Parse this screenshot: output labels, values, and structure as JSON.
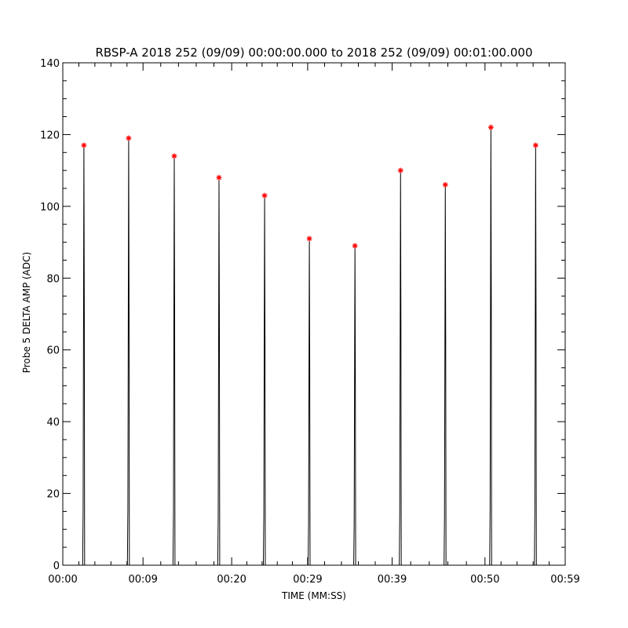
{
  "chart_data": {
    "type": "line",
    "title": "RBSP-A 2018 252 (09/09) 00:00:00.000 to 2018 252 (09/09) 00:01:00.000",
    "xlabel": "TIME (MM:SS)",
    "ylabel": "Probe 5 DELTA AMP (ADC)",
    "xlim": [
      0,
      59.5
    ],
    "ylim": [
      0,
      140
    ],
    "y_ticks": [
      0,
      20,
      40,
      60,
      80,
      100,
      120,
      140
    ],
    "x_ticks": [
      {
        "value": 0,
        "label": "00:00"
      },
      {
        "value": 9.5,
        "label": "00:09"
      },
      {
        "value": 20,
        "label": "00:20"
      },
      {
        "value": 29,
        "label": "00:29"
      },
      {
        "value": 39,
        "label": "00:39"
      },
      {
        "value": 50,
        "label": "00:50"
      },
      {
        "value": 59.5,
        "label": "00:59"
      }
    ],
    "peaks": [
      {
        "t": 2.5,
        "peak": 117
      },
      {
        "t": 7.8,
        "peak": 119
      },
      {
        "t": 13.2,
        "peak": 114
      },
      {
        "t": 18.5,
        "peak": 108
      },
      {
        "t": 23.9,
        "peak": 103
      },
      {
        "t": 29.2,
        "peak": 91
      },
      {
        "t": 34.6,
        "peak": 89
      },
      {
        "t": 40.0,
        "peak": 110
      },
      {
        "t": 45.3,
        "peak": 106
      },
      {
        "t": 50.7,
        "peak": 122
      },
      {
        "t": 56.0,
        "peak": 117
      }
    ],
    "line_color": "#000000",
    "marker_color": "#ff0000",
    "marker": "asterisk"
  }
}
